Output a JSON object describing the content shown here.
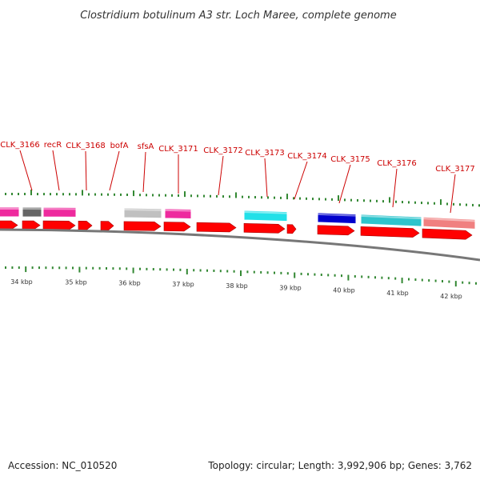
{
  "title": "Clostridium botulinum A3 str. Loch Maree, complete genome",
  "footer": {
    "accession": "Accession: NC_010520",
    "summary": "Topology: circular; Length: 3,992,906 bp; Genes: 3,762"
  },
  "colors": {
    "label": "#cc0000",
    "leader": "#cc0000",
    "backbone": "#777777",
    "tick": "#338833",
    "cds": "#ff0000"
  },
  "gene_labels": [
    "CLK_3166",
    "recR",
    "CLK_3168",
    "bofA",
    "sfsA",
    "CLK_3171",
    "CLK_3172",
    "CLK_3173",
    "CLK_3174",
    "CLK_3175",
    "CLK_3176",
    "CLK_3177"
  ],
  "kbp_labels": [
    "34 kbp",
    "35 kbp",
    "36 kbp",
    "37 kbp",
    "38 kbp",
    "39 kbp",
    "40 kbp",
    "41 kbp",
    "42 kbp"
  ],
  "feature_legend_colors": {
    "magenta": "#ee2a9e",
    "gray": "#666666",
    "light_gray": "#c0c0c0",
    "cyan": "#22e0e8",
    "teal": "#2ec4cc",
    "blue": "#0000cc",
    "salmon": "#f08080"
  }
}
